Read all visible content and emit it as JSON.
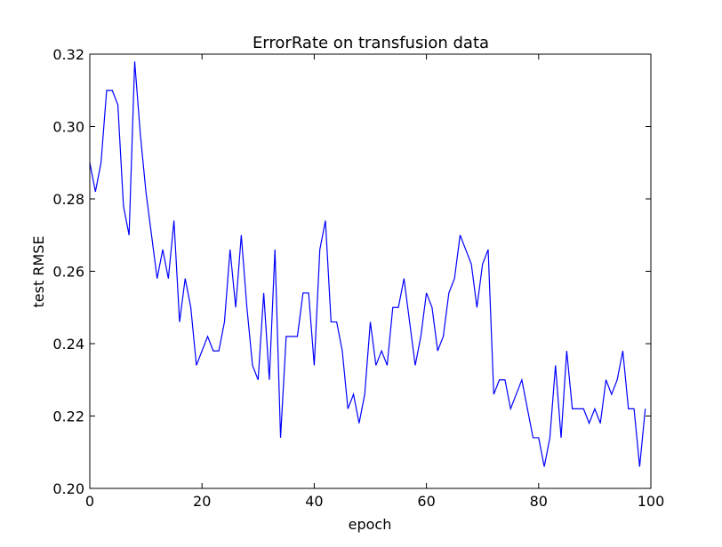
{
  "chart_data": {
    "type": "line",
    "title": "ErrorRate on transfusion data",
    "xlabel": "epoch",
    "ylabel": "test RMSE",
    "xlim": [
      0,
      100
    ],
    "ylim": [
      0.2,
      0.32
    ],
    "xticks": [
      "0",
      "20",
      "40",
      "60",
      "80",
      "100"
    ],
    "yticks": [
      "0.20",
      "0.22",
      "0.24",
      "0.26",
      "0.28",
      "0.30",
      "0.32"
    ],
    "grid": false,
    "legend": "none",
    "series": [
      {
        "color": "#0000ff",
        "x": [
          0,
          1,
          2,
          3,
          4,
          5,
          6,
          7,
          8,
          9,
          10,
          11,
          12,
          13,
          14,
          15,
          16,
          17,
          18,
          19,
          20,
          21,
          22,
          23,
          24,
          25,
          26,
          27,
          28,
          29,
          30,
          31,
          32,
          33,
          34,
          35,
          36,
          37,
          38,
          39,
          40,
          41,
          42,
          43,
          44,
          45,
          46,
          47,
          48,
          49,
          50,
          51,
          52,
          53,
          54,
          55,
          56,
          57,
          58,
          59,
          60,
          61,
          62,
          63,
          64,
          65,
          66,
          67,
          68,
          69,
          70,
          71,
          72,
          73,
          74,
          75,
          76,
          77,
          78,
          79,
          80,
          81,
          82,
          83,
          84,
          85,
          86,
          87,
          88,
          89,
          90,
          91,
          92,
          93,
          94,
          95,
          96,
          97,
          98,
          99
        ],
        "values": [
          0.29,
          0.282,
          0.29,
          0.31,
          0.31,
          0.306,
          0.278,
          0.27,
          0.318,
          0.298,
          0.282,
          0.27,
          0.258,
          0.266,
          0.258,
          0.274,
          0.246,
          0.258,
          0.25,
          0.234,
          0.238,
          0.242,
          0.238,
          0.238,
          0.246,
          0.266,
          0.25,
          0.27,
          0.25,
          0.234,
          0.23,
          0.254,
          0.23,
          0.266,
          0.214,
          0.242,
          0.242,
          0.242,
          0.254,
          0.254,
          0.234,
          0.266,
          0.274,
          0.246,
          0.246,
          0.238,
          0.222,
          0.226,
          0.218,
          0.226,
          0.246,
          0.234,
          0.238,
          0.234,
          0.25,
          0.25,
          0.258,
          0.246,
          0.234,
          0.242,
          0.254,
          0.25,
          0.238,
          0.242,
          0.254,
          0.258,
          0.27,
          0.266,
          0.262,
          0.25,
          0.262,
          0.266,
          0.226,
          0.23,
          0.23,
          0.222,
          0.226,
          0.23,
          0.222,
          0.214,
          0.214,
          0.206,
          0.214,
          0.234,
          0.214,
          0.238,
          0.222,
          0.222,
          0.222,
          0.218,
          0.222,
          0.218,
          0.23,
          0.226,
          0.23,
          0.238,
          0.222,
          0.222,
          0.206,
          0.222
        ]
      }
    ]
  }
}
